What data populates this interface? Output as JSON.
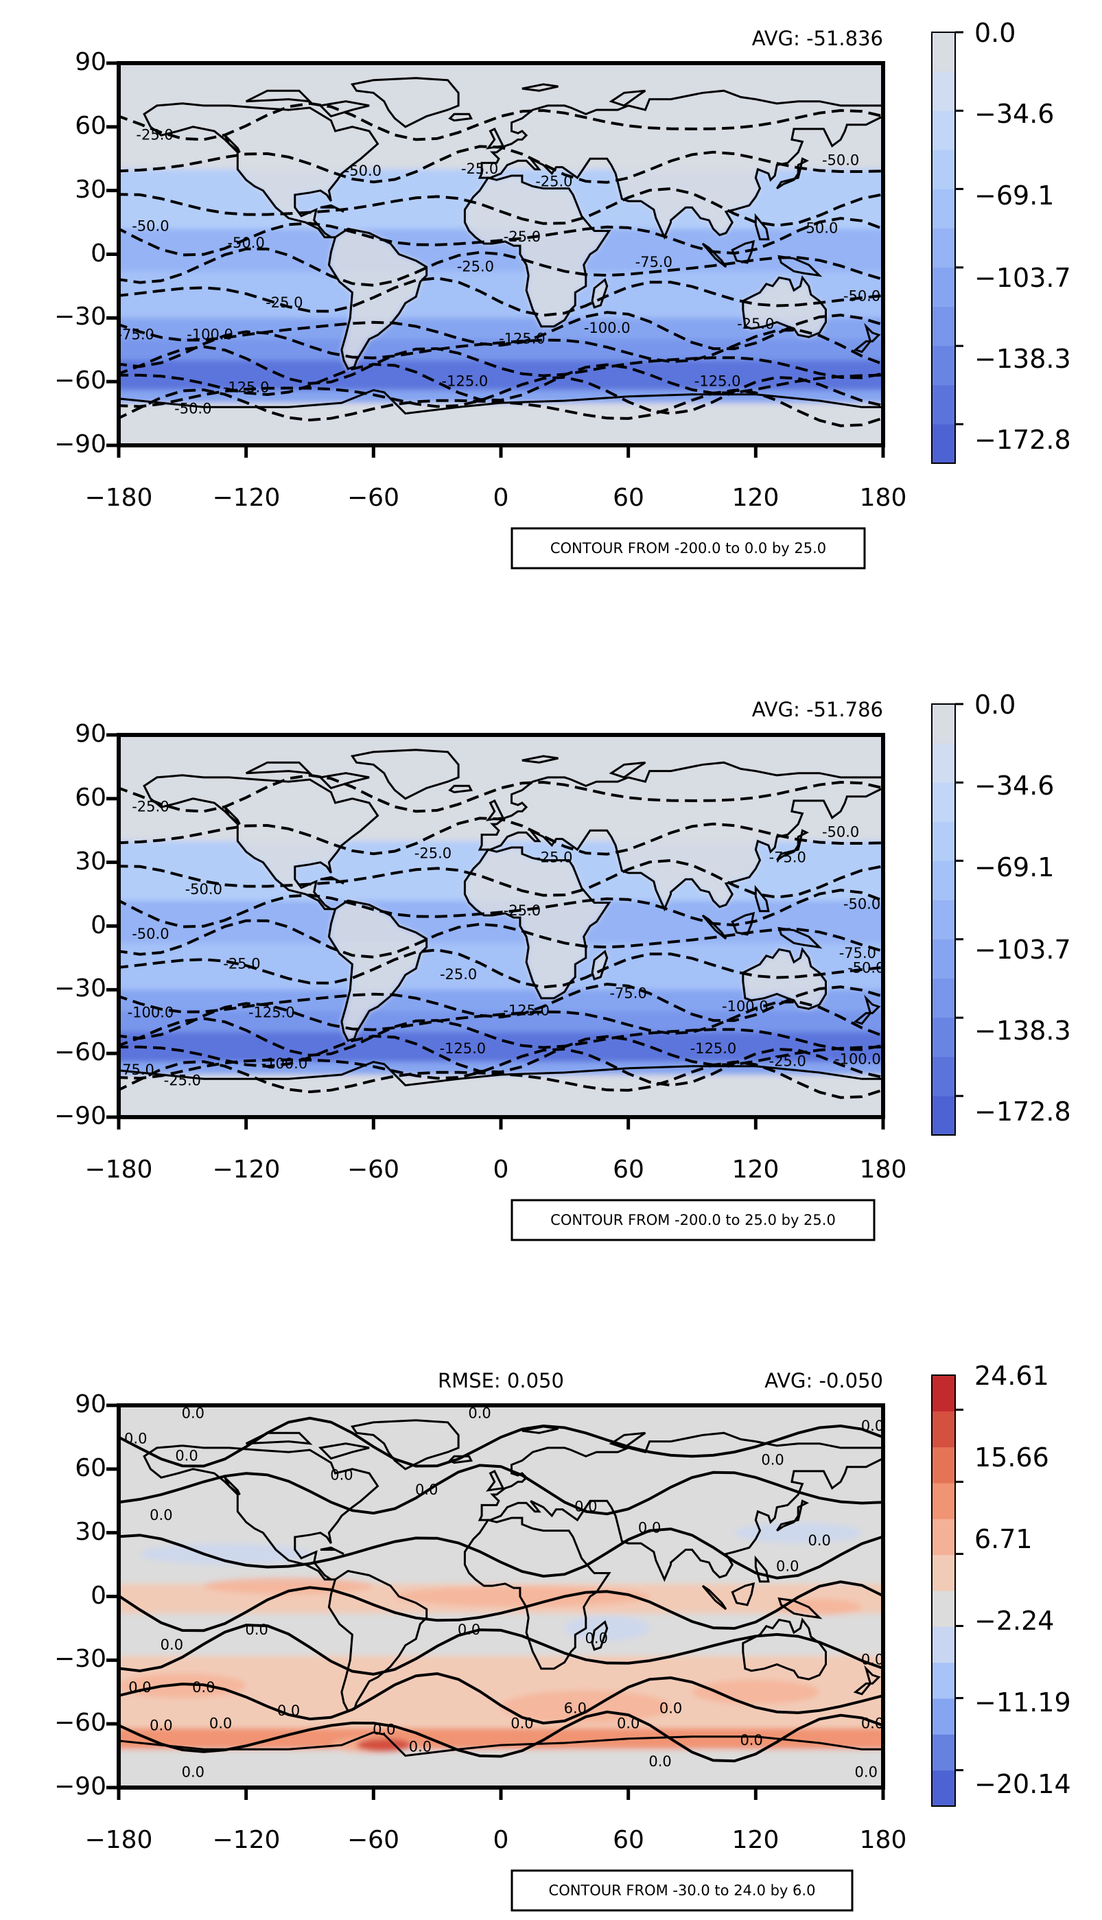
{
  "chart_data": [
    {
      "type": "contour",
      "panel": "test",
      "avg_label": "AVG: -51.836",
      "legend_note": "CONTOUR FROM -200.0 to 0.0 by 25.0",
      "xlim": [
        -180,
        180
      ],
      "ylim": [
        -90,
        90
      ],
      "xticks": [
        "−180",
        "−120",
        "−60",
        "0",
        "60",
        "120",
        "180"
      ],
      "yticks": [
        "90",
        "60",
        "30",
        "0",
        "−30",
        "−60",
        "−90"
      ],
      "colorbar": {
        "ticks": [
          "0.0",
          "−34.6",
          "−69.1",
          "−103.7",
          "−138.3",
          "−172.8"
        ],
        "tick_values": [
          0.0,
          -34.6,
          -69.1,
          -103.7,
          -138.3,
          -172.8
        ],
        "range": [
          -190,
          0
        ],
        "colors": [
          "#4e63d3",
          "#5b74dc",
          "#6985e4",
          "#7896eb",
          "#86a5f1",
          "#95b3f5",
          "#a4c1f8",
          "#b3cdf9",
          "#c2d6f7",
          "#cfdcf2",
          "#d8dce3"
        ]
      },
      "contour_labels": [
        {
          "text": "-25.0",
          "lon": -163,
          "lat": 54
        },
        {
          "text": "-50.0",
          "lon": -65,
          "lat": 37
        },
        {
          "text": "-25.0",
          "lon": -10,
          "lat": 38
        },
        {
          "text": "-25.0",
          "lon": 25,
          "lat": 32
        },
        {
          "text": "-50.0",
          "lon": 160,
          "lat": 42
        },
        {
          "text": "-50.0",
          "lon": -165,
          "lat": 11
        },
        {
          "text": "-50.0",
          "lon": -120,
          "lat": 3
        },
        {
          "text": "-25.0",
          "lon": 10,
          "lat": 6
        },
        {
          "text": "-25.0",
          "lon": -12,
          "lat": -8
        },
        {
          "text": "-75.0",
          "lon": 72,
          "lat": -6
        },
        {
          "text": "-50.0",
          "lon": 150,
          "lat": 10
        },
        {
          "text": "-25.0",
          "lon": -102,
          "lat": -25
        },
        {
          "text": "-50.0",
          "lon": 170,
          "lat": -22
        },
        {
          "text": "-75.0",
          "lon": -172,
          "lat": -40
        },
        {
          "text": "-100.0",
          "lon": -137,
          "lat": -40
        },
        {
          "text": "-100.0",
          "lon": 50,
          "lat": -37
        },
        {
          "text": "-125.0",
          "lon": 10,
          "lat": -42
        },
        {
          "text": "-25.0",
          "lon": 120,
          "lat": -35
        },
        {
          "text": "-125.0",
          "lon": -120,
          "lat": -65
        },
        {
          "text": "-125.0",
          "lon": -17,
          "lat": -62
        },
        {
          "text": "-125.0",
          "lon": 102,
          "lat": -62
        },
        {
          "text": "-50.0",
          "lon": -145,
          "lat": -75
        }
      ]
    },
    {
      "type": "contour",
      "panel": "reference",
      "avg_label": "AVG: -51.786",
      "legend_note": "CONTOUR FROM -200.0 to 25.0 by 25.0",
      "xlim": [
        -180,
        180
      ],
      "ylim": [
        -90,
        90
      ],
      "xticks": [
        "−180",
        "−120",
        "−60",
        "0",
        "60",
        "120",
        "180"
      ],
      "yticks": [
        "90",
        "60",
        "30",
        "0",
        "−30",
        "−60",
        "−90"
      ],
      "colorbar": {
        "ticks": [
          "0.0",
          "−34.6",
          "−69.1",
          "−103.7",
          "−138.3",
          "−172.8"
        ],
        "tick_values": [
          0.0,
          -34.6,
          -69.1,
          -103.7,
          -138.3,
          -172.8
        ],
        "range": [
          -190,
          0
        ],
        "colors": [
          "#4e63d3",
          "#5b74dc",
          "#6985e4",
          "#7896eb",
          "#86a5f1",
          "#95b3f5",
          "#a4c1f8",
          "#b3cdf9",
          "#c2d6f7",
          "#cfdcf2",
          "#d8dce3"
        ]
      },
      "contour_labels": [
        {
          "text": "-25.0",
          "lon": -165,
          "lat": 54
        },
        {
          "text": "-25.0",
          "lon": -32,
          "lat": 32
        },
        {
          "text": "-25.0",
          "lon": 25,
          "lat": 30
        },
        {
          "text": "-50.0",
          "lon": 160,
          "lat": 42
        },
        {
          "text": "-50.0",
          "lon": -140,
          "lat": 15
        },
        {
          "text": "-75.0",
          "lon": 135,
          "lat": 30
        },
        {
          "text": "-50.0",
          "lon": 170,
          "lat": 8
        },
        {
          "text": "-50.0",
          "lon": -165,
          "lat": -6
        },
        {
          "text": "-25.0",
          "lon": 10,
          "lat": 5
        },
        {
          "text": "-25.0",
          "lon": -122,
          "lat": -20
        },
        {
          "text": "-25.0",
          "lon": -20,
          "lat": -25
        },
        {
          "text": "-75.0",
          "lon": 60,
          "lat": -34
        },
        {
          "text": "-75.0",
          "lon": 168,
          "lat": -15
        },
        {
          "text": "-50.0",
          "lon": 172,
          "lat": -22
        },
        {
          "text": "-100.0",
          "lon": -165,
          "lat": -43
        },
        {
          "text": "-125.0",
          "lon": -108,
          "lat": -43
        },
        {
          "text": "-125.0",
          "lon": 12,
          "lat": -42
        },
        {
          "text": "-100.0",
          "lon": 115,
          "lat": -40
        },
        {
          "text": "-75.0",
          "lon": -172,
          "lat": -70
        },
        {
          "text": "-25.0",
          "lon": -150,
          "lat": -75
        },
        {
          "text": "-100.0",
          "lon": -102,
          "lat": -67
        },
        {
          "text": "-125.0",
          "lon": -18,
          "lat": -60
        },
        {
          "text": "-125.0",
          "lon": 100,
          "lat": -60
        },
        {
          "text": "-25.0",
          "lon": 135,
          "lat": -66
        },
        {
          "text": "-100.0",
          "lon": 168,
          "lat": -65
        }
      ]
    },
    {
      "type": "contour",
      "panel": "difference",
      "rmse_label": "RMSE: 0.050",
      "avg_label": "AVG: -0.050",
      "legend_note": "CONTOUR FROM -30.0 to 24.0 by 6.0",
      "xlim": [
        -180,
        180
      ],
      "ylim": [
        -90,
        90
      ],
      "xticks": [
        "−180",
        "−120",
        "−60",
        "0",
        "60",
        "120",
        "180"
      ],
      "yticks": [
        "90",
        "60",
        "30",
        "0",
        "−30",
        "−60",
        "−90"
      ],
      "colorbar": {
        "ticks": [
          "24.61",
          "15.66",
          "6.71",
          "−2.24",
          "−11.19",
          "−20.14"
        ],
        "tick_values": [
          24.61,
          15.66,
          6.71,
          -2.24,
          -11.19,
          -20.14
        ],
        "range": [
          -24.6,
          28.9
        ],
        "colors": [
          "#4e63d3",
          "#6682e0",
          "#86a5f1",
          "#a7c3f8",
          "#c8d6f2",
          "#dcdcdc",
          "#f2cbb7",
          "#f5b196",
          "#f09473",
          "#e57457",
          "#d4503f",
          "#c32a2d"
        ]
      },
      "contour_labels": [
        {
          "text": "0.0",
          "lon": -145,
          "lat": 84
        },
        {
          "text": "0.0",
          "lon": -10,
          "lat": 84
        },
        {
          "text": "0.0",
          "lon": -172,
          "lat": 72
        },
        {
          "text": "0.0",
          "lon": -148,
          "lat": 64
        },
        {
          "text": "0.0",
          "lon": 175,
          "lat": 78
        },
        {
          "text": "0.0",
          "lon": -75,
          "lat": 55
        },
        {
          "text": "0.0",
          "lon": -35,
          "lat": 48
        },
        {
          "text": "0.0",
          "lon": 128,
          "lat": 62
        },
        {
          "text": "0.0",
          "lon": 40,
          "lat": 40
        },
        {
          "text": "0.0",
          "lon": 70,
          "lat": 30
        },
        {
          "text": "0.0",
          "lon": -160,
          "lat": 36
        },
        {
          "text": "0.0",
          "lon": 150,
          "lat": 24
        },
        {
          "text": "0.0",
          "lon": 135,
          "lat": 12
        },
        {
          "text": "0.0",
          "lon": -115,
          "lat": -18
        },
        {
          "text": "0.0",
          "lon": -155,
          "lat": -25
        },
        {
          "text": "0.0",
          "lon": -15,
          "lat": -18
        },
        {
          "text": "0.0",
          "lon": 45,
          "lat": -22
        },
        {
          "text": "0.0",
          "lon": -170,
          "lat": -45
        },
        {
          "text": "0.0",
          "lon": -140,
          "lat": -45
        },
        {
          "text": "0.0",
          "lon": 175,
          "lat": -32
        },
        {
          "text": "0.0",
          "lon": 175,
          "lat": -62
        },
        {
          "text": "0.0",
          "lon": -160,
          "lat": -63
        },
        {
          "text": "0.0",
          "lon": -132,
          "lat": -62
        },
        {
          "text": "0.0",
          "lon": -100,
          "lat": -56
        },
        {
          "text": "0.0",
          "lon": -55,
          "lat": -65
        },
        {
          "text": "0.0",
          "lon": -38,
          "lat": -73
        },
        {
          "text": "0.0",
          "lon": 10,
          "lat": -62
        },
        {
          "text": "6.0",
          "lon": 35,
          "lat": -55
        },
        {
          "text": "0.0",
          "lon": 60,
          "lat": -62
        },
        {
          "text": "0.0",
          "lon": 80,
          "lat": -55
        },
        {
          "text": "0.0",
          "lon": 75,
          "lat": -80
        },
        {
          "text": "0.0",
          "lon": 118,
          "lat": -70
        },
        {
          "text": "0.0",
          "lon": -145,
          "lat": -85
        },
        {
          "text": "0.0",
          "lon": 172,
          "lat": -85
        }
      ]
    }
  ]
}
